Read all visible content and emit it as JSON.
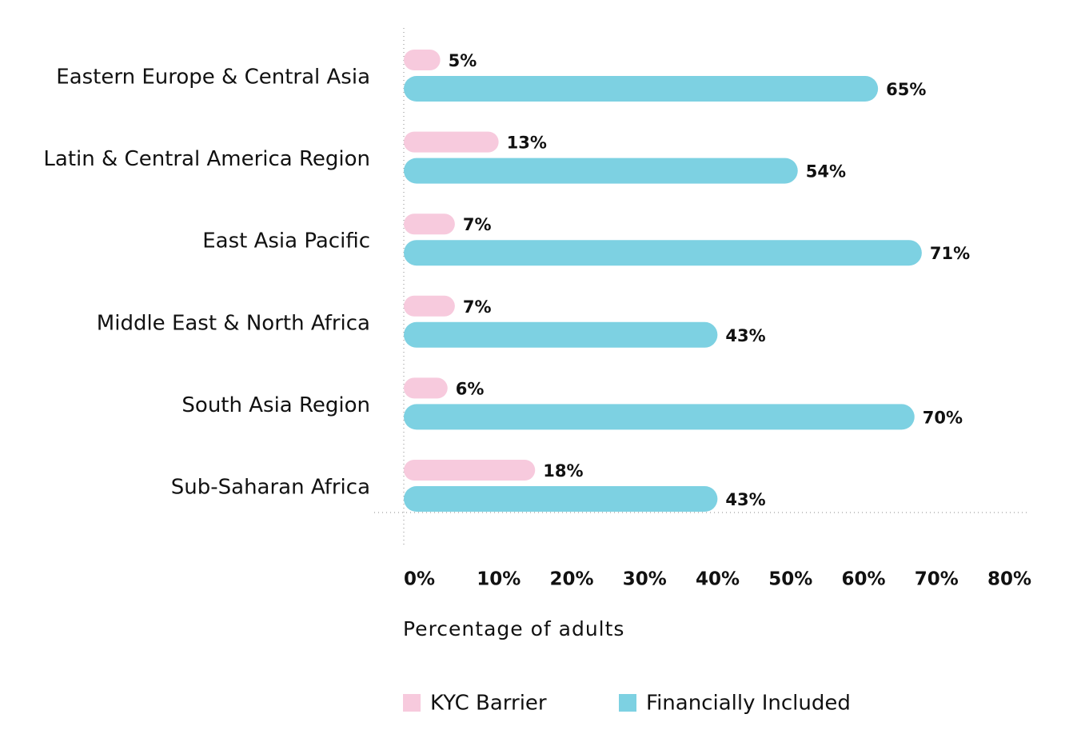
{
  "chart_data": {
    "type": "bar",
    "orientation": "horizontal",
    "categories": [
      "Eastern Europe & Central Asia",
      "Latin & Central America Region",
      "East Asia Pacific",
      "Middle East & North Africa",
      "South Asia Region",
      "Sub-Saharan Africa"
    ],
    "series": [
      {
        "name": "KYC Barrier",
        "color": "#f7cadd",
        "values": [
          5,
          13,
          7,
          7,
          6,
          18
        ],
        "value_labels": [
          "5%",
          "13%",
          "7%",
          "7%",
          "6%",
          "18%"
        ]
      },
      {
        "name": "Financially Included",
        "color": "#7dd1e2",
        "values": [
          65,
          54,
          71,
          43,
          70,
          43
        ],
        "value_labels": [
          "65%",
          "54%",
          "71%",
          "43%",
          "70%",
          "43%"
        ]
      }
    ],
    "xlabel": "Percentage of adults",
    "xlim": [
      0,
      80
    ],
    "xticks": [
      {
        "value": 0,
        "label": "0%"
      },
      {
        "value": 10,
        "label": "10%"
      },
      {
        "value": 20,
        "label": "20%"
      },
      {
        "value": 30,
        "label": "30%"
      },
      {
        "value": 40,
        "label": "40%"
      },
      {
        "value": 50,
        "label": "50%"
      },
      {
        "value": 60,
        "label": "60%"
      },
      {
        "value": 70,
        "label": "70%"
      },
      {
        "value": 80,
        "label": "80%"
      }
    ],
    "legend": "bottom-left"
  }
}
